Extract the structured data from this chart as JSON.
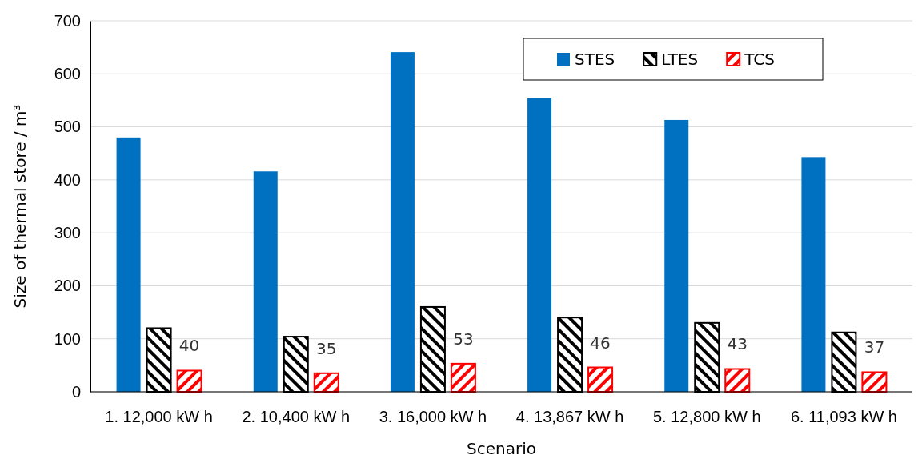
{
  "chart_data": {
    "type": "bar",
    "xlabel": "Scenario",
    "ylabel": "Size of thermal store / m³",
    "categories": [
      "1. 12,000 kW h",
      "2. 10,400 kW h",
      "3. 16,000 kW h",
      "4. 13,867 kW h",
      "5. 12,800 kW h",
      "6. 11,093 kW h"
    ],
    "series": [
      {
        "name": "STES",
        "color": "#0070c0",
        "values": [
          480,
          416,
          641,
          555,
          513,
          443
        ]
      },
      {
        "name": "LTES",
        "color": "#000000",
        "values": [
          120,
          104,
          160,
          140,
          130,
          112
        ]
      },
      {
        "name": "TCS",
        "color": "#ff0000",
        "values": [
          40,
          35,
          53,
          46,
          43,
          37
        ],
        "value_labels": [
          "40",
          "35",
          "53",
          "46",
          "43",
          "37"
        ]
      }
    ],
    "ylim": [
      0,
      700
    ],
    "yticks": [
      0,
      100,
      200,
      300,
      400,
      500,
      600,
      700
    ],
    "grid": "y",
    "legend": "top right"
  }
}
